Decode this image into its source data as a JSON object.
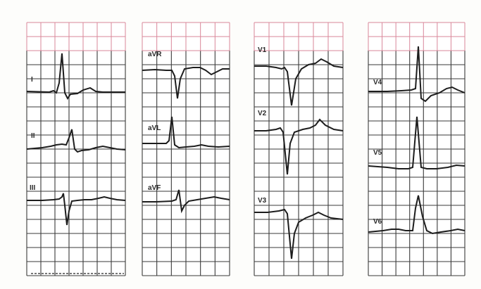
{
  "leads": [
    {
      "label": "I"
    },
    {
      "label": "II"
    },
    {
      "label": "III"
    },
    {
      "label": "aVR"
    },
    {
      "label": "aVL"
    },
    {
      "label": "aVF"
    },
    {
      "label": "V1"
    },
    {
      "label": "V2"
    },
    {
      "label": "V3"
    },
    {
      "label": "V4"
    },
    {
      "label": "V5"
    },
    {
      "label": "V6"
    }
  ],
  "colors": {
    "grid_red": "#d9879a",
    "grid_black": "#3a3a3a",
    "trace": "#1d1d1d"
  },
  "icons": {
    "calibration_bar": "scale-bar-icon"
  }
}
